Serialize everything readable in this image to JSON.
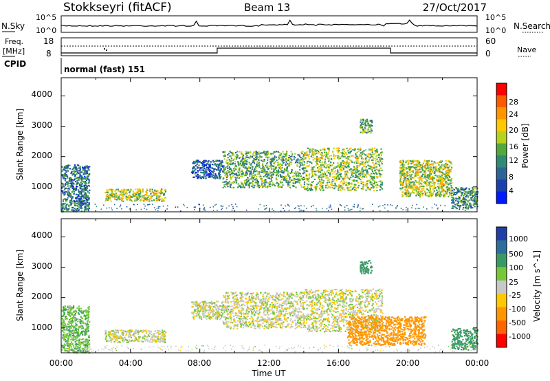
{
  "header": {
    "station": "Stokkseyri (fitACF)",
    "beam": "Beam 13",
    "date": "27/Oct/2017"
  },
  "noise_panel": {
    "left_label": "N.Sky",
    "right_label": "N.Search",
    "left_ticks": [
      "10^5",
      "10^0"
    ],
    "right_ticks": [
      "10^5",
      "10^0"
    ]
  },
  "freq_panel": {
    "left_label_1": "Freq.",
    "left_label_2": "[MHz]",
    "left_ticks": [
      "18",
      "8"
    ],
    "right_ticks": [
      "60",
      "0"
    ],
    "right_label": "Nave",
    "frequency_mhz": 10.5,
    "nave_switch_hours": [
      9.0,
      19.0
    ]
  },
  "cpid": {
    "label": "CPID",
    "mode": "normal (fast) 151"
  },
  "axes": {
    "xlabel": "Time UT",
    "xticks": [
      "00:00",
      "04:00",
      "08:00",
      "12:00",
      "16:00",
      "20:00",
      "00:00"
    ],
    "ylabel": "Slant Range [km]",
    "yticks": [
      "1000",
      "2000",
      "3000",
      "4000"
    ]
  },
  "power_colorbar": {
    "label": "Power [dB]",
    "ticks": [
      "28",
      "24",
      "20",
      "16",
      "12",
      "8",
      "4"
    ],
    "colors": [
      "#ff0000",
      "#ff5a00",
      "#ff9600",
      "#ffc800",
      "#b4d21e",
      "#52a83c",
      "#2f8a73",
      "#2d6496",
      "#1b3fb0",
      "#0019ff"
    ]
  },
  "velocity_colorbar": {
    "label": "Velocity [m s^-1]",
    "ticks": [
      "1000",
      "500",
      "100",
      "25",
      "-25",
      "-100",
      "-500",
      "-1000"
    ],
    "colors": [
      "#1f3ea8",
      "#2c6e9c",
      "#3a9a66",
      "#77c73a",
      "#c8c8c8",
      "#ffc800",
      "#ff9600",
      "#ff6400",
      "#ff0000"
    ]
  },
  "chart_data": [
    {
      "type": "heatmap",
      "title": "Power",
      "xlabel": "Time UT",
      "ylabel": "Slant Range [km]",
      "xlim_hours": [
        0,
        24
      ],
      "ylim_km": [
        180,
        4600
      ],
      "colorbar_label": "Power [dB]",
      "echo_regions": [
        {
          "t0": 0.0,
          "t1": 1.6,
          "r0": 200,
          "r1": 1750,
          "value_db": 10
        },
        {
          "t0": 2.5,
          "t1": 6.0,
          "r0": 550,
          "r1": 950,
          "value_db": 18
        },
        {
          "t0": 7.5,
          "t1": 9.3,
          "r0": 1300,
          "r1": 1900,
          "value_db": 8
        },
        {
          "t0": 9.3,
          "t1": 14.0,
          "r0": 1000,
          "r1": 2200,
          "value_db": 14
        },
        {
          "t0": 14.0,
          "t1": 18.5,
          "r0": 900,
          "r1": 2300,
          "value_db": 17
        },
        {
          "t0": 17.2,
          "t1": 17.9,
          "r0": 2800,
          "r1": 3250,
          "value_db": 14
        },
        {
          "t0": 19.5,
          "t1": 22.5,
          "r0": 700,
          "r1": 1900,
          "value_db": 18
        },
        {
          "t0": 22.5,
          "t1": 24.0,
          "r0": 300,
          "r1": 1000,
          "value_db": 12
        }
      ]
    },
    {
      "type": "heatmap",
      "title": "Velocity",
      "xlabel": "Time UT",
      "ylabel": "Slant Range [km]",
      "xlim_hours": [
        0,
        24
      ],
      "ylim_km": [
        180,
        4600
      ],
      "colorbar_label": "Velocity [m s^-1]",
      "echo_regions": [
        {
          "t0": 0.0,
          "t1": 1.6,
          "r0": 200,
          "r1": 1750,
          "value_ms": 80
        },
        {
          "t0": 2.5,
          "t1": 6.0,
          "r0": 550,
          "r1": 950,
          "value_ms": 0
        },
        {
          "t0": 7.5,
          "t1": 9.3,
          "r0": 1300,
          "r1": 1900,
          "value_ms": 0
        },
        {
          "t0": 9.3,
          "t1": 14.0,
          "r0": 1000,
          "r1": 2200,
          "value_ms": 0
        },
        {
          "t0": 14.0,
          "t1": 18.5,
          "r0": 900,
          "r1": 2300,
          "value_ms": 0
        },
        {
          "t0": 17.2,
          "t1": 17.9,
          "r0": 2800,
          "r1": 3250,
          "value_ms": 400
        },
        {
          "t0": 16.5,
          "t1": 21.0,
          "r0": 450,
          "r1": 1400,
          "value_ms": -400
        },
        {
          "t0": 22.5,
          "t1": 24.0,
          "r0": 300,
          "r1": 1000,
          "value_ms": 150
        }
      ]
    }
  ]
}
